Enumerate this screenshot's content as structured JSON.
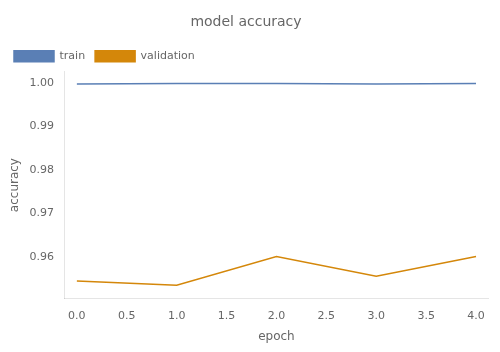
{
  "chart_data": {
    "type": "line",
    "title": "model accuracy",
    "xlabel": "epoch",
    "ylabel": "accuracy",
    "x": [
      0,
      1,
      2,
      3,
      4
    ],
    "series": [
      {
        "name": "train",
        "color": "#5a7fb5",
        "values": [
          0.9997,
          0.9998,
          0.9998,
          0.9997,
          0.9998
        ]
      },
      {
        "name": "validation",
        "color": "#d4870a",
        "values": [
          0.9545,
          0.9535,
          0.9601,
          0.9556,
          0.9601
        ]
      }
    ],
    "xlim": [
      -0.12,
      4.12
    ],
    "ylim": [
      0.9505,
      1.0025
    ],
    "xticks": [
      {
        "value": 0.0,
        "label": "0.0"
      },
      {
        "value": 0.5,
        "label": "0.5"
      },
      {
        "value": 1.0,
        "label": "1.0"
      },
      {
        "value": 1.5,
        "label": "1.5"
      },
      {
        "value": 2.0,
        "label": "2.0"
      },
      {
        "value": 2.5,
        "label": "2.5"
      },
      {
        "value": 3.0,
        "label": "3.0"
      },
      {
        "value": 3.5,
        "label": "3.5"
      },
      {
        "value": 4.0,
        "label": "4.0"
      }
    ],
    "yticks": [
      0.96,
      0.97,
      0.98,
      0.99,
      {
        "value": 1.0,
        "label": "1.00"
      }
    ],
    "grid": false,
    "legend": "upper left"
  }
}
